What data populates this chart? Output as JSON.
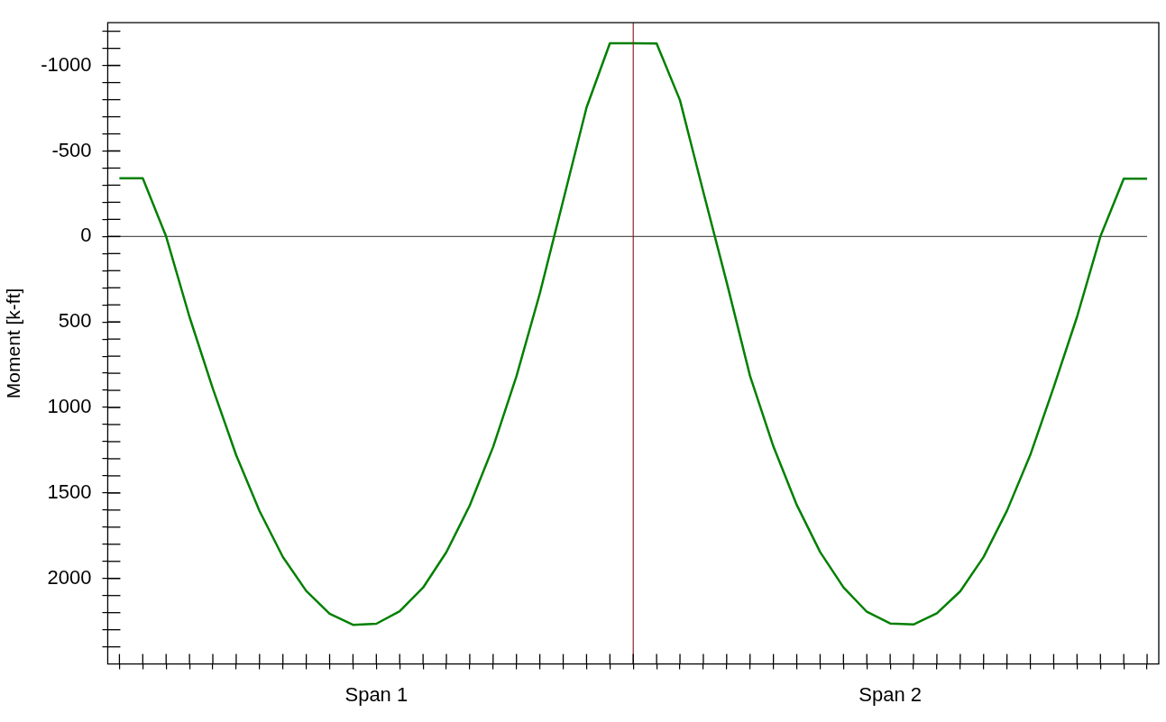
{
  "chart_data": {
    "type": "line",
    "ylabel": "Moment [k-ft]",
    "categories": [
      null,
      null,
      null,
      null,
      null,
      null,
      null,
      null,
      null,
      null,
      null,
      "Span 1",
      null,
      null,
      null,
      null,
      null,
      null,
      null,
      null,
      null,
      null,
      null,
      null,
      null,
      null,
      null,
      null,
      null,
      null,
      null,
      null,
      null,
      "Span 2",
      null,
      null,
      null,
      null,
      null,
      null,
      null,
      null,
      null,
      null,
      null
    ],
    "ylim": [
      2500,
      -1250
    ],
    "yticks": [
      {
        "value": -1200,
        "label": null
      },
      {
        "value": -1100,
        "label": null
      },
      -1000,
      {
        "value": -900,
        "label": null
      },
      {
        "value": -800,
        "label": null
      },
      {
        "value": -700,
        "label": null
      },
      {
        "value": -600,
        "label": null
      },
      -500,
      {
        "value": -400,
        "label": null
      },
      {
        "value": -300,
        "label": null
      },
      {
        "value": -200,
        "label": null
      },
      {
        "value": -100,
        "label": null
      },
      0,
      {
        "value": 100,
        "label": null
      },
      {
        "value": 200,
        "label": null
      },
      {
        "value": 300,
        "label": null
      },
      {
        "value": 400,
        "label": null
      },
      500,
      {
        "value": 600,
        "label": null
      },
      {
        "value": 700,
        "label": null
      },
      {
        "value": 800,
        "label": null
      },
      {
        "value": 900,
        "label": null
      },
      1000,
      {
        "value": 1100,
        "label": null
      },
      {
        "value": 1200,
        "label": null
      },
      {
        "value": 1300,
        "label": null
      },
      {
        "value": 1400,
        "label": null
      },
      1500,
      {
        "value": 1600,
        "label": null
      },
      {
        "value": 1700,
        "label": null
      },
      {
        "value": 1800,
        "label": null
      },
      {
        "value": 1900,
        "label": null
      },
      2000,
      {
        "value": 2100,
        "label": null
      },
      {
        "value": 2200,
        "label": null
      },
      {
        "value": 2300,
        "label": null
      },
      {
        "value": 2400,
        "label": null
      }
    ],
    "grid": false,
    "legend": false,
    "marker": "none",
    "line_style": "solid",
    "ref_lines": [
      {
        "axis": "y",
        "value": 0,
        "color": "#555555"
      }
    ],
    "series": [
      {
        "color": "#008000",
        "values": [
          -340,
          -340,
          0,
          470,
          890,
          1279,
          1606,
          1875,
          2073,
          2206,
          2271,
          2265,
          2192,
          2054,
          1846,
          1573,
          1231,
          817,
          333,
          -210,
          -754,
          -1130,
          -1130,
          -1128,
          -797,
          -260,
          268,
          816,
          1228,
          1570,
          1845,
          2052,
          2195,
          2263,
          2269,
          2204,
          2075,
          1874,
          1604,
          1277,
          882,
          470,
          0,
          -338,
          -338
        ]
      }
    ]
  }
}
